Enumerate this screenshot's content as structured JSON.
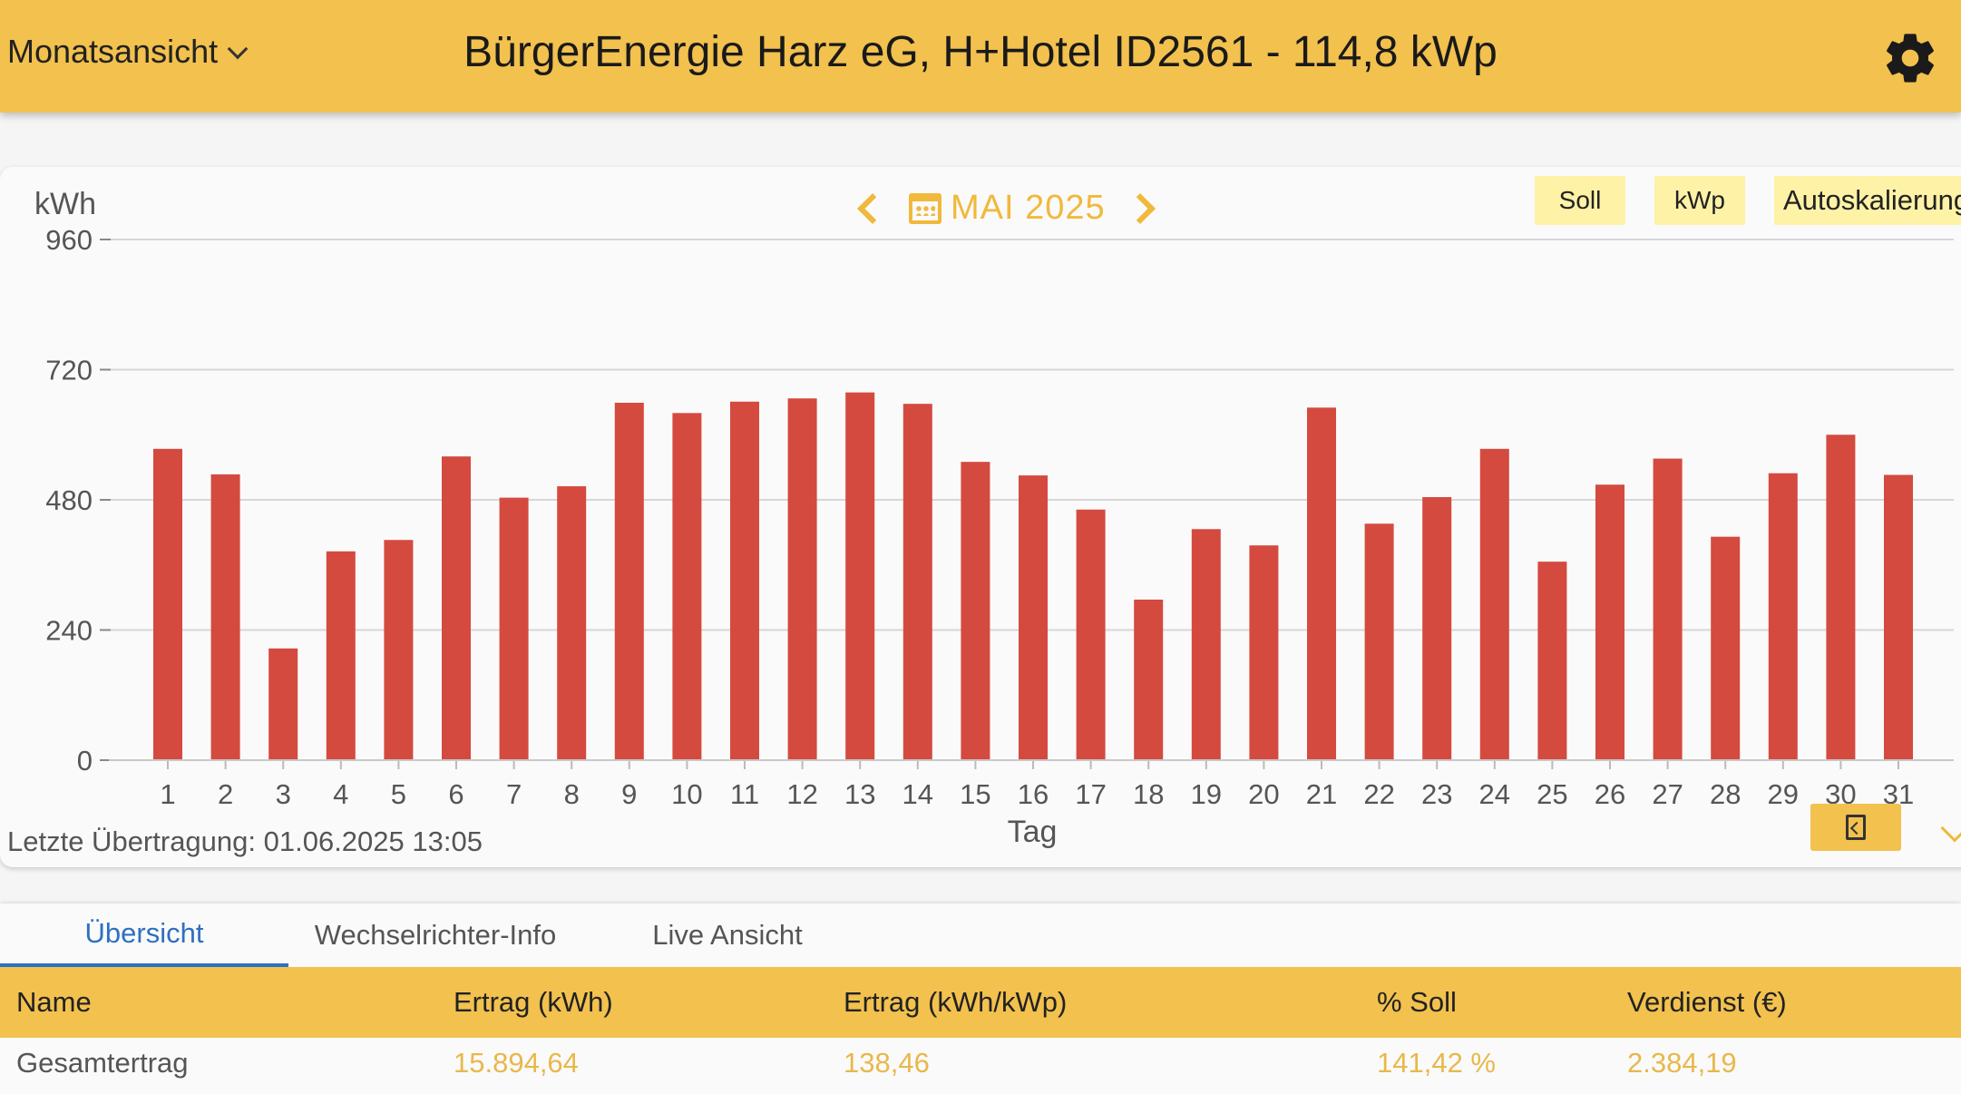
{
  "header": {
    "view_select": "Monatsansicht",
    "title": "BürgerEnergie Harz eG, H+Hotel ID2561 - 114,8 kWp",
    "settings_icon": "gear-icon"
  },
  "chart_controls": {
    "month": "MAI 2025",
    "buttons": {
      "soll": "Soll",
      "kwp": "kWp",
      "autoscale": "Autoskalierung"
    },
    "last_transmission": "Letzte Übertragung: 01.06.2025 13:05"
  },
  "chart_data": {
    "type": "bar",
    "ylabel": "kWh",
    "xlabel": "Tag",
    "ylim": [
      0,
      960
    ],
    "yticks": [
      0,
      240,
      480,
      720,
      960
    ],
    "categories": [
      "1",
      "2",
      "3",
      "4",
      "5",
      "6",
      "7",
      "8",
      "9",
      "10",
      "11",
      "12",
      "13",
      "14",
      "15",
      "16",
      "17",
      "18",
      "19",
      "20",
      "21",
      "22",
      "23",
      "24",
      "25",
      "26",
      "27",
      "28",
      "29",
      "30",
      "31"
    ],
    "values": [
      574,
      527,
      206,
      385,
      406,
      560,
      484,
      505,
      659,
      640,
      661,
      667,
      678,
      657,
      550,
      525,
      462,
      296,
      426,
      396,
      650,
      436,
      485,
      574,
      366,
      508,
      556,
      412,
      529,
      600,
      526
    ],
    "bar_color": "#d44a3f",
    "grid": true
  },
  "tabs": [
    {
      "label": "Übersicht",
      "active": true
    },
    {
      "label": "Wechselrichter-Info",
      "active": false
    },
    {
      "label": "Live Ansicht",
      "active": false
    }
  ],
  "table": {
    "headers": [
      "Name",
      "Ertrag (kWh)",
      "Ertrag (kWh/kWp)",
      "% Soll",
      "Verdienst (€)"
    ],
    "rows": [
      [
        "Gesamtertrag",
        "15.894,64",
        "138,46",
        "141,42 %",
        "2.384,19"
      ]
    ]
  },
  "colors": {
    "header": "#f2c14e",
    "accent": "#f0b93c",
    "tab_active": "#2f6fc2",
    "value_text": "#e8b84a"
  }
}
